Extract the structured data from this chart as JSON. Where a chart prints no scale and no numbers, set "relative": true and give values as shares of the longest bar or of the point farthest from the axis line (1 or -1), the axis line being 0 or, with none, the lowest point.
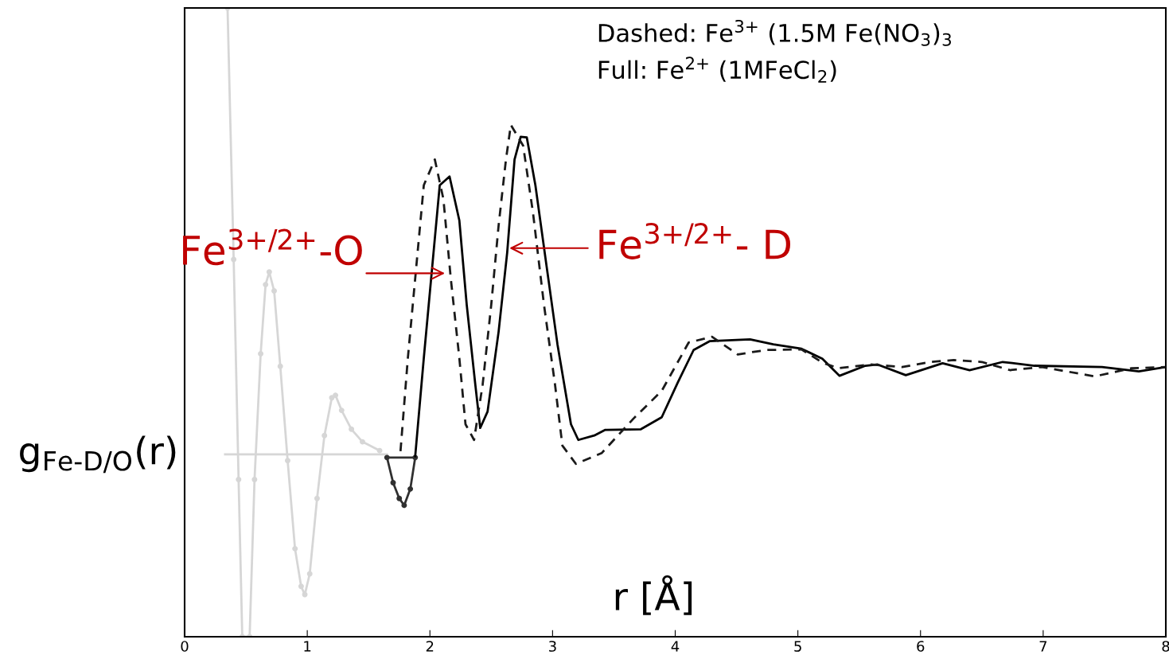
{
  "chart_data": {
    "type": "line",
    "relative": true,
    "xlabel": "r [Å]",
    "ylabel": "g$_{Fe-D/O}$(r)",
    "xlim": [
      0,
      8
    ],
    "xticks": [
      0,
      1,
      2,
      3,
      4,
      5,
      6,
      7,
      8
    ],
    "tick_labels": "x",
    "grid": false,
    "legend": false,
    "annotations": [
      "Dashed: Fe$^{3+}$ (1.5M Fe(NO$_{3}$)$_{3}$\nFull: Fe$^{2+}$ (1MFeCl$_{2}$)",
      {
        "text": "Fe$^{3+/2+}$-O",
        "x": 2.14,
        "y": 0.578
      },
      {
        "text": "Fe$^{3+/2+}$- D",
        "x": 2.63,
        "y": 0.618
      }
    ],
    "series": [
      {
        "color": "#d6d6d6",
        "marker": "circle",
        "line_style": "solid",
        "x": [
          0.35,
          0.4,
          0.44,
          0.47,
          0.53,
          0.57,
          0.62,
          0.66,
          0.69,
          0.73,
          0.78,
          0.84,
          0.9,
          0.95,
          0.98,
          1.02,
          1.08,
          1.14,
          1.2,
          1.23,
          1.28,
          1.36,
          1.45,
          1.59
        ],
        "values": [
          1.0,
          0.6,
          0.25,
          0.0,
          0.0,
          0.25,
          0.45,
          0.56,
          0.58,
          0.55,
          0.43,
          0.28,
          0.14,
          0.08,
          0.067,
          0.1,
          0.22,
          0.32,
          0.38,
          0.384,
          0.36,
          0.33,
          0.31,
          0.296
        ]
      },
      {
        "color": "#d6d6d6",
        "marker": "none",
        "line_style": "solid",
        "x": [
          0.33,
          1.65
        ],
        "values": [
          0.29,
          0.29
        ]
      },
      {
        "color": "#303030",
        "marker": "circle",
        "line_style": "solid",
        "x": [
          1.65,
          1.7,
          1.75,
          1.79,
          1.84,
          1.88
        ],
        "values": [
          0.285,
          0.245,
          0.22,
          0.209,
          0.235,
          0.285
        ]
      },
      {
        "color": "#303030",
        "marker": "none",
        "line_style": "solid",
        "x": [
          1.65,
          1.88
        ],
        "values": [
          0.285,
          0.285
        ]
      },
      {
        "color": "#000000",
        "marker": "none",
        "line_style": "solid",
        "x": [
          1.88,
          1.95,
          2.02,
          2.08,
          2.16,
          2.24,
          2.3,
          2.37,
          2.41,
          2.47,
          2.56,
          2.63,
          2.69,
          2.74,
          2.79,
          2.86,
          2.95,
          3.04,
          3.15,
          3.21,
          3.34,
          3.43,
          3.72,
          3.89,
          4.02,
          4.15,
          4.28,
          4.61,
          4.8,
          5.03,
          5.2,
          5.34,
          5.55,
          5.65,
          5.88,
          6.18,
          6.4,
          6.67,
          6.93,
          7.48,
          7.78,
          8.0
        ],
        "values": [
          0.287,
          0.443,
          0.591,
          0.718,
          0.732,
          0.662,
          0.528,
          0.401,
          0.332,
          0.358,
          0.485,
          0.611,
          0.759,
          0.795,
          0.794,
          0.718,
          0.591,
          0.465,
          0.338,
          0.313,
          0.32,
          0.329,
          0.33,
          0.349,
          0.404,
          0.456,
          0.47,
          0.473,
          0.465,
          0.458,
          0.442,
          0.415,
          0.431,
          0.433,
          0.416,
          0.435,
          0.424,
          0.437,
          0.431,
          0.429,
          0.422,
          0.429
        ]
      },
      {
        "color": "#1a1a1a",
        "marker": "none",
        "line_style": "dashed",
        "x": [
          1.76,
          1.82,
          1.89,
          1.95,
          2.04,
          2.11,
          2.17,
          2.24,
          2.29,
          2.36,
          2.43,
          2.5,
          2.56,
          2.62,
          2.66,
          2.76,
          2.84,
          2.93,
          3.02,
          3.08,
          3.19,
          3.4,
          3.66,
          3.89,
          4.11,
          4.3,
          4.51,
          4.74,
          5.03,
          5.2,
          5.33,
          5.59,
          5.85,
          6.08,
          6.27,
          6.5,
          6.73,
          6.99,
          7.42,
          7.72,
          8.0
        ],
        "values": [
          0.295,
          0.443,
          0.591,
          0.718,
          0.759,
          0.696,
          0.57,
          0.443,
          0.338,
          0.313,
          0.401,
          0.528,
          0.654,
          0.759,
          0.814,
          0.781,
          0.675,
          0.528,
          0.401,
          0.304,
          0.275,
          0.292,
          0.347,
          0.391,
          0.468,
          0.477,
          0.449,
          0.456,
          0.457,
          0.436,
          0.427,
          0.433,
          0.429,
          0.437,
          0.44,
          0.437,
          0.424,
          0.429,
          0.414,
          0.427,
          0.429
        ]
      }
    ]
  }
}
